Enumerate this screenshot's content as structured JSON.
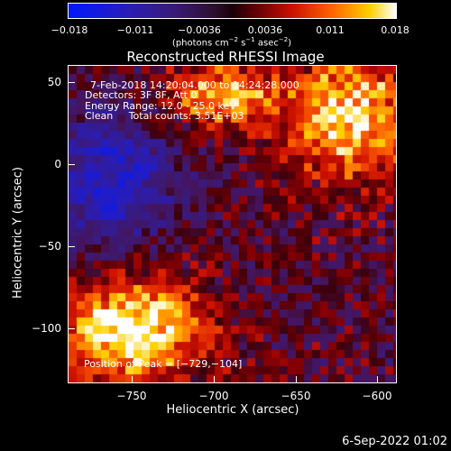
{
  "colorbar": {
    "ticks": [
      "−0.018",
      "−0.011",
      "−0.0036",
      "0.0036",
      "0.011",
      "0.018"
    ],
    "units_a": "(photons cm",
    "units_sup1": "−2",
    "units_b": " s",
    "units_sup2": "−1",
    "units_c": " asec",
    "units_sup3": "−2",
    "units_d": ")"
  },
  "title": "Reconstructed RHESSI Image",
  "info": {
    "time_range": "7-Feb-2018 14:20:04.000 to 14:24:28.000",
    "detectors": "Detectors: 3F 8F, Att 0",
    "energy": "Energy Range: 12.0 - 25.0 keV",
    "method_counts": "Clean     Total counts: 3.51E+03"
  },
  "peak": "Position of Peak = [−729,−104]",
  "axes": {
    "xlabel": "Heliocentric X (arcsec)",
    "ylabel": "Heliocentric Y (arcsec)",
    "xticks": [
      "−750",
      "−700",
      "−650",
      "−600"
    ],
    "yticks": [
      "50",
      "0",
      "−50",
      "−100"
    ]
  },
  "datestamp": "6-Sep-2022 01:02",
  "colors": {
    "background": "#000000",
    "foreground": "#ffffff"
  }
}
